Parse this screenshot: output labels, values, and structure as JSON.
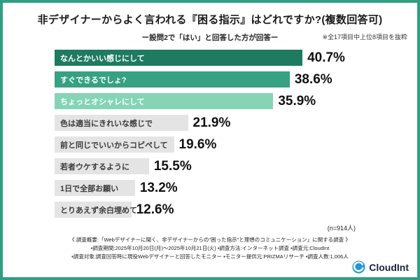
{
  "title": "非デザイナーからよく言われる『困る指示』はどれですか?(複数回答可)",
  "excerpt_note": "※全17項目中上位8項目を抜粋",
  "subtitle": "ー設問2で「はい」と回答した方が回答ー",
  "chart_data": {
    "type": "bar",
    "orientation": "horizontal",
    "title": "非デザイナーからよく言われる『困る指示』はどれですか?(複数回答可)",
    "categories": [
      "なんとかいい感じにして",
      "すぐできるでしょ?",
      "ちょっとオシャレにして",
      "色は適当にきれいな感じで",
      "前と同じでいいからコピペして",
      "若者ウケするように",
      "1日で全部お願い",
      "とりあえず余白埋めて"
    ],
    "values": [
      40.7,
      38.6,
      35.9,
      21.9,
      19.6,
      15.5,
      13.2,
      12.6
    ],
    "value_suffix": "%",
    "xlim": [
      0,
      45
    ],
    "grid": false,
    "legend": false,
    "bar_colors": [
      "#1e7a60",
      "#36a183",
      "#85d4b6",
      "#e4e4e4",
      "#e4e4e4",
      "#e4e4e4",
      "#e4e4e4",
      "#e4e4e4"
    ],
    "label_text_colors": [
      "#ffffff",
      "#ffffff",
      "#ffffff",
      "#3a3a3a",
      "#3a3a3a",
      "#3a3a3a",
      "#3a3a3a",
      "#3a3a3a"
    ]
  },
  "sample_note": "(n=914人)",
  "footer": {
    "lines": [
      "《 調査概要:「Webデザイナーに聞く、非デザイナーからの\"困った指示\"と理想のコミュニケーション」に関する調査 》",
      "▪調査期間:2025年10月20日(月)〜2025年10月21日(火)  ▪調査方法:インターネット調査  ▪調査元:CloudInt",
      "▪調査対象:調査回答時に現役Webデザイナーと回答したモニター  ▪モニター提供元:PRIZMAリサーチ  ▪調査人数:1,006人"
    ]
  },
  "logo": {
    "text": "CloudInt"
  },
  "colors": {
    "frame": "#2f9e82",
    "bar_dark_green": "#1e7a60",
    "bar_mid_green": "#36a183",
    "bar_light_green": "#85d4b6",
    "bar_gray": "#e4e4e4",
    "logo_blue": "#2196d9",
    "logo_navy": "#16243e"
  }
}
